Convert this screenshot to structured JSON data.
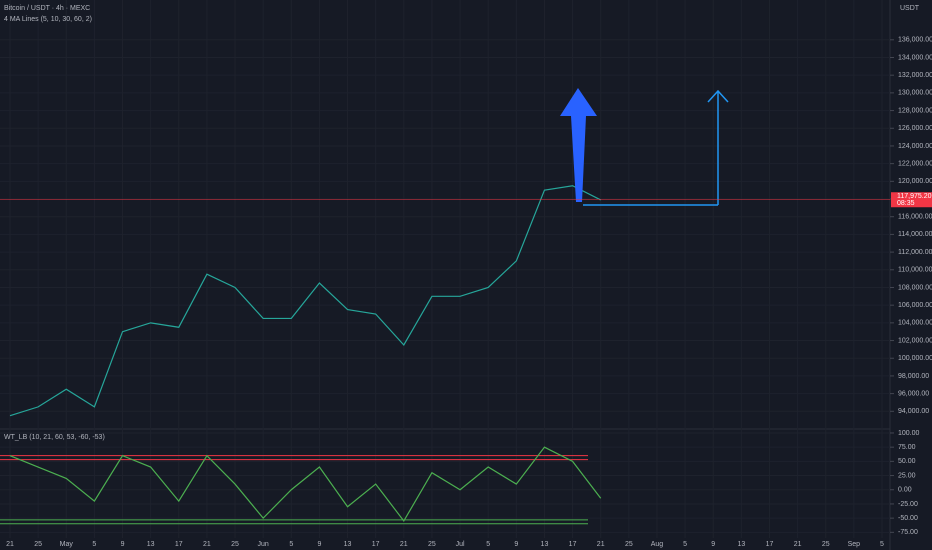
{
  "chart_data": [
    {
      "type": "line",
      "title": "Bitcoin / USDT · 4h · MEXC",
      "subtitle": "4 MA Lines (5, 10, 30, 60, 2)",
      "axis_label": "USDT",
      "categories": [
        "21",
        "25",
        "May",
        "5",
        "9",
        "13",
        "17",
        "21",
        "25",
        "Jun",
        "5",
        "9",
        "13",
        "17",
        "21",
        "25",
        "Jul",
        "5",
        "9",
        "13",
        "17",
        "21",
        "25",
        "Aug",
        "5",
        "9",
        "13",
        "17",
        "21",
        "25",
        "Sep",
        "5"
      ],
      "series": [
        {
          "color": "#26a69a",
          "values": [
            93500,
            94500,
            96500,
            94500,
            103000,
            104000,
            103500,
            109500,
            108000,
            104500,
            104500,
            108500,
            105500,
            105000,
            101500,
            107000,
            107000,
            108000,
            111000,
            119000,
            119500,
            117900,
            null,
            null,
            null,
            null,
            null,
            null,
            null,
            null,
            null,
            null
          ]
        }
      ],
      "ylim": [
        92000,
        140500
      ],
      "yticks": [
        {
          "value": 94000,
          "label": "94,000.00"
        },
        {
          "value": 96000,
          "label": "96,000.00"
        },
        {
          "value": 98000,
          "label": "98,000.00"
        },
        {
          "value": 100000,
          "label": "100,000.00"
        },
        {
          "value": 102000,
          "label": "102,000.00"
        },
        {
          "value": 104000,
          "label": "104,000.00"
        },
        {
          "value": 106000,
          "label": "106,000.00"
        },
        {
          "value": 108000,
          "label": "108,000.00"
        },
        {
          "value": 110000,
          "label": "110,000.00"
        },
        {
          "value": 112000,
          "label": "112,000.00"
        },
        {
          "value": 114000,
          "label": "114,000.00"
        },
        {
          "value": 116000,
          "label": "116,000.00"
        },
        {
          "value": 118000,
          "label": "118,000.00"
        },
        {
          "value": 120000,
          "label": "120,000.00"
        },
        {
          "value": 122000,
          "label": "122,000.00"
        },
        {
          "value": 124000,
          "label": "124,000.00"
        },
        {
          "value": 126000,
          "label": "126,000.00"
        },
        {
          "value": 128000,
          "label": "128,000.00"
        },
        {
          "value": 130000,
          "label": "130,000.00"
        },
        {
          "value": 132000,
          "label": "132,000.00"
        },
        {
          "value": 134000,
          "label": "134,000.00"
        },
        {
          "value": 136000,
          "label": "136,000.00"
        }
      ],
      "price_line": {
        "value": 117975.2,
        "label": "117,975.20",
        "time": "08:35",
        "color": "#f23645"
      },
      "grid": true
    },
    {
      "type": "line",
      "title": "WT_LB (10, 21, 60, 53, -60, -53)",
      "series": [
        {
          "color": "#4caf50",
          "values": [
            60,
            40,
            20,
            -20,
            60,
            40,
            -20,
            60,
            10,
            -50,
            0,
            40,
            -30,
            10,
            -55,
            30,
            0,
            40,
            10,
            75,
            50,
            -15,
            null,
            null,
            null,
            null,
            null,
            null,
            null,
            null,
            null,
            null
          ]
        }
      ],
      "ylim": [
        -85,
        107
      ],
      "yticks": [
        {
          "value": 100,
          "label": "100.00"
        },
        {
          "value": 75,
          "label": "75.00"
        },
        {
          "value": 50,
          "label": "50.00"
        },
        {
          "value": 25,
          "label": "25.00"
        },
        {
          "value": 0,
          "label": "0.00"
        },
        {
          "value": -25,
          "label": "-25.00"
        },
        {
          "value": -50,
          "label": "-50.00"
        },
        {
          "value": -75,
          "label": "-75.00"
        }
      ],
      "levels": [
        {
          "value": 60,
          "color": "#f23645"
        },
        {
          "value": 53,
          "color": "#f23645"
        },
        {
          "value": -53,
          "color": "#4caf50"
        },
        {
          "value": -60,
          "color": "#4caf50"
        }
      ],
      "grid": true
    }
  ]
}
